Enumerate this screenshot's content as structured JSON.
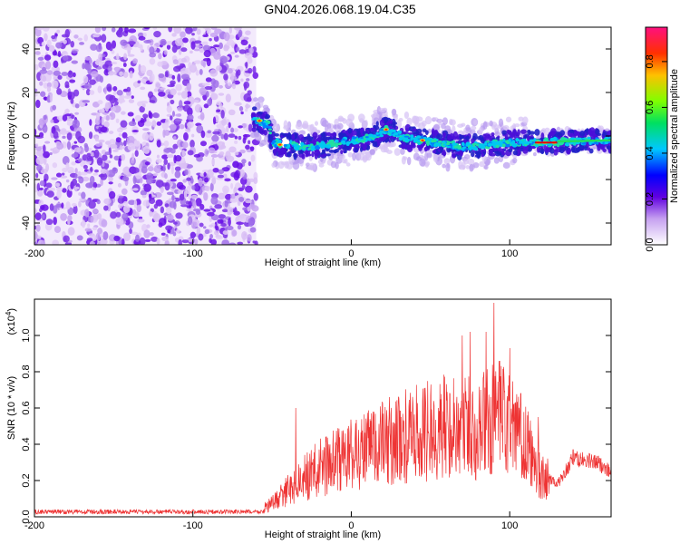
{
  "title": "GN04.2026.068.19.04.C35",
  "chart_data": [
    {
      "type": "heatmap",
      "description": "spectrogram",
      "xlabel": "Height of straight line (km)",
      "ylabel": "Frequency (Hz)",
      "xlim": [
        -200,
        164
      ],
      "ylim": [
        -50,
        50
      ],
      "xticks": [
        "-200",
        "-100",
        "0",
        "100"
      ],
      "xtick_values": [
        -200,
        -100,
        0,
        100
      ],
      "yticks": [
        "-40",
        "-20",
        "0",
        "20",
        "40"
      ],
      "ytick_values": [
        -40,
        -20,
        0,
        20,
        40
      ],
      "noise_region_x": [
        -200,
        -60
      ],
      "signal_track": [
        {
          "x": -62,
          "y": 8
        },
        {
          "x": -52,
          "y": 5
        },
        {
          "x": -50,
          "y": -3
        },
        {
          "x": -30,
          "y": -5
        },
        {
          "x": -15,
          "y": -4
        },
        {
          "x": 0,
          "y": -2
        },
        {
          "x": 15,
          "y": 0
        },
        {
          "x": 22,
          "y": 3
        },
        {
          "x": 35,
          "y": -1
        },
        {
          "x": 55,
          "y": -3
        },
        {
          "x": 70,
          "y": -5
        },
        {
          "x": 85,
          "y": -4
        },
        {
          "x": 100,
          "y": -3
        },
        {
          "x": 120,
          "y": -3
        },
        {
          "x": 164,
          "y": -2
        }
      ],
      "colorbar": {
        "label": "Normalized spectral amplitude",
        "range": [
          0.0,
          0.95
        ],
        "ticks": [
          "0.0",
          "0.2",
          "0.4",
          "0.6",
          "0.8"
        ],
        "tick_values": [
          0.0,
          0.2,
          0.4,
          0.6,
          0.8
        ]
      }
    },
    {
      "type": "line",
      "xlabel": "Height of straight line (km)",
      "ylabel": "SNR (10 * v/v)",
      "yscale_label": "(x10",
      "yscale_exp": "4",
      "xlim": [
        -200,
        164
      ],
      "ylim": [
        0,
        1.2
      ],
      "xticks": [
        "-200",
        "-100",
        "0",
        "100"
      ],
      "xtick_values": [
        -200,
        -100,
        0,
        100
      ],
      "yticks": [
        "0.0",
        "0.2",
        "0.4",
        "0.6",
        "0.8",
        "1.0"
      ],
      "ytick_values": [
        0.0,
        0.2,
        0.4,
        0.6,
        0.8,
        1.0
      ],
      "color": "#ee3333",
      "envelope": [
        {
          "x": -200,
          "y": 0.03
        },
        {
          "x": -60,
          "y": 0.03
        },
        {
          "x": -50,
          "y": 0.08
        },
        {
          "x": -35,
          "y": 0.2
        },
        {
          "x": -20,
          "y": 0.3
        },
        {
          "x": 0,
          "y": 0.38
        },
        {
          "x": 20,
          "y": 0.45
        },
        {
          "x": 40,
          "y": 0.5
        },
        {
          "x": 60,
          "y": 0.55
        },
        {
          "x": 80,
          "y": 0.55
        },
        {
          "x": 95,
          "y": 0.6
        },
        {
          "x": 110,
          "y": 0.45
        },
        {
          "x": 120,
          "y": 0.25
        },
        {
          "x": 130,
          "y": 0.18
        },
        {
          "x": 140,
          "y": 0.32
        },
        {
          "x": 155,
          "y": 0.3
        },
        {
          "x": 164,
          "y": 0.25
        }
      ],
      "peaks": [
        {
          "x": -35,
          "y": 0.6
        },
        {
          "x": 55,
          "y": 0.6
        },
        {
          "x": 70,
          "y": 1.0
        },
        {
          "x": 75,
          "y": 1.02
        },
        {
          "x": 85,
          "y": 1.02
        },
        {
          "x": 90,
          "y": 1.18
        },
        {
          "x": 100,
          "y": 0.93
        },
        {
          "x": 107,
          "y": 0.68
        },
        {
          "x": 118,
          "y": 0.55
        },
        {
          "x": 140,
          "y": 0.37
        }
      ]
    }
  ]
}
